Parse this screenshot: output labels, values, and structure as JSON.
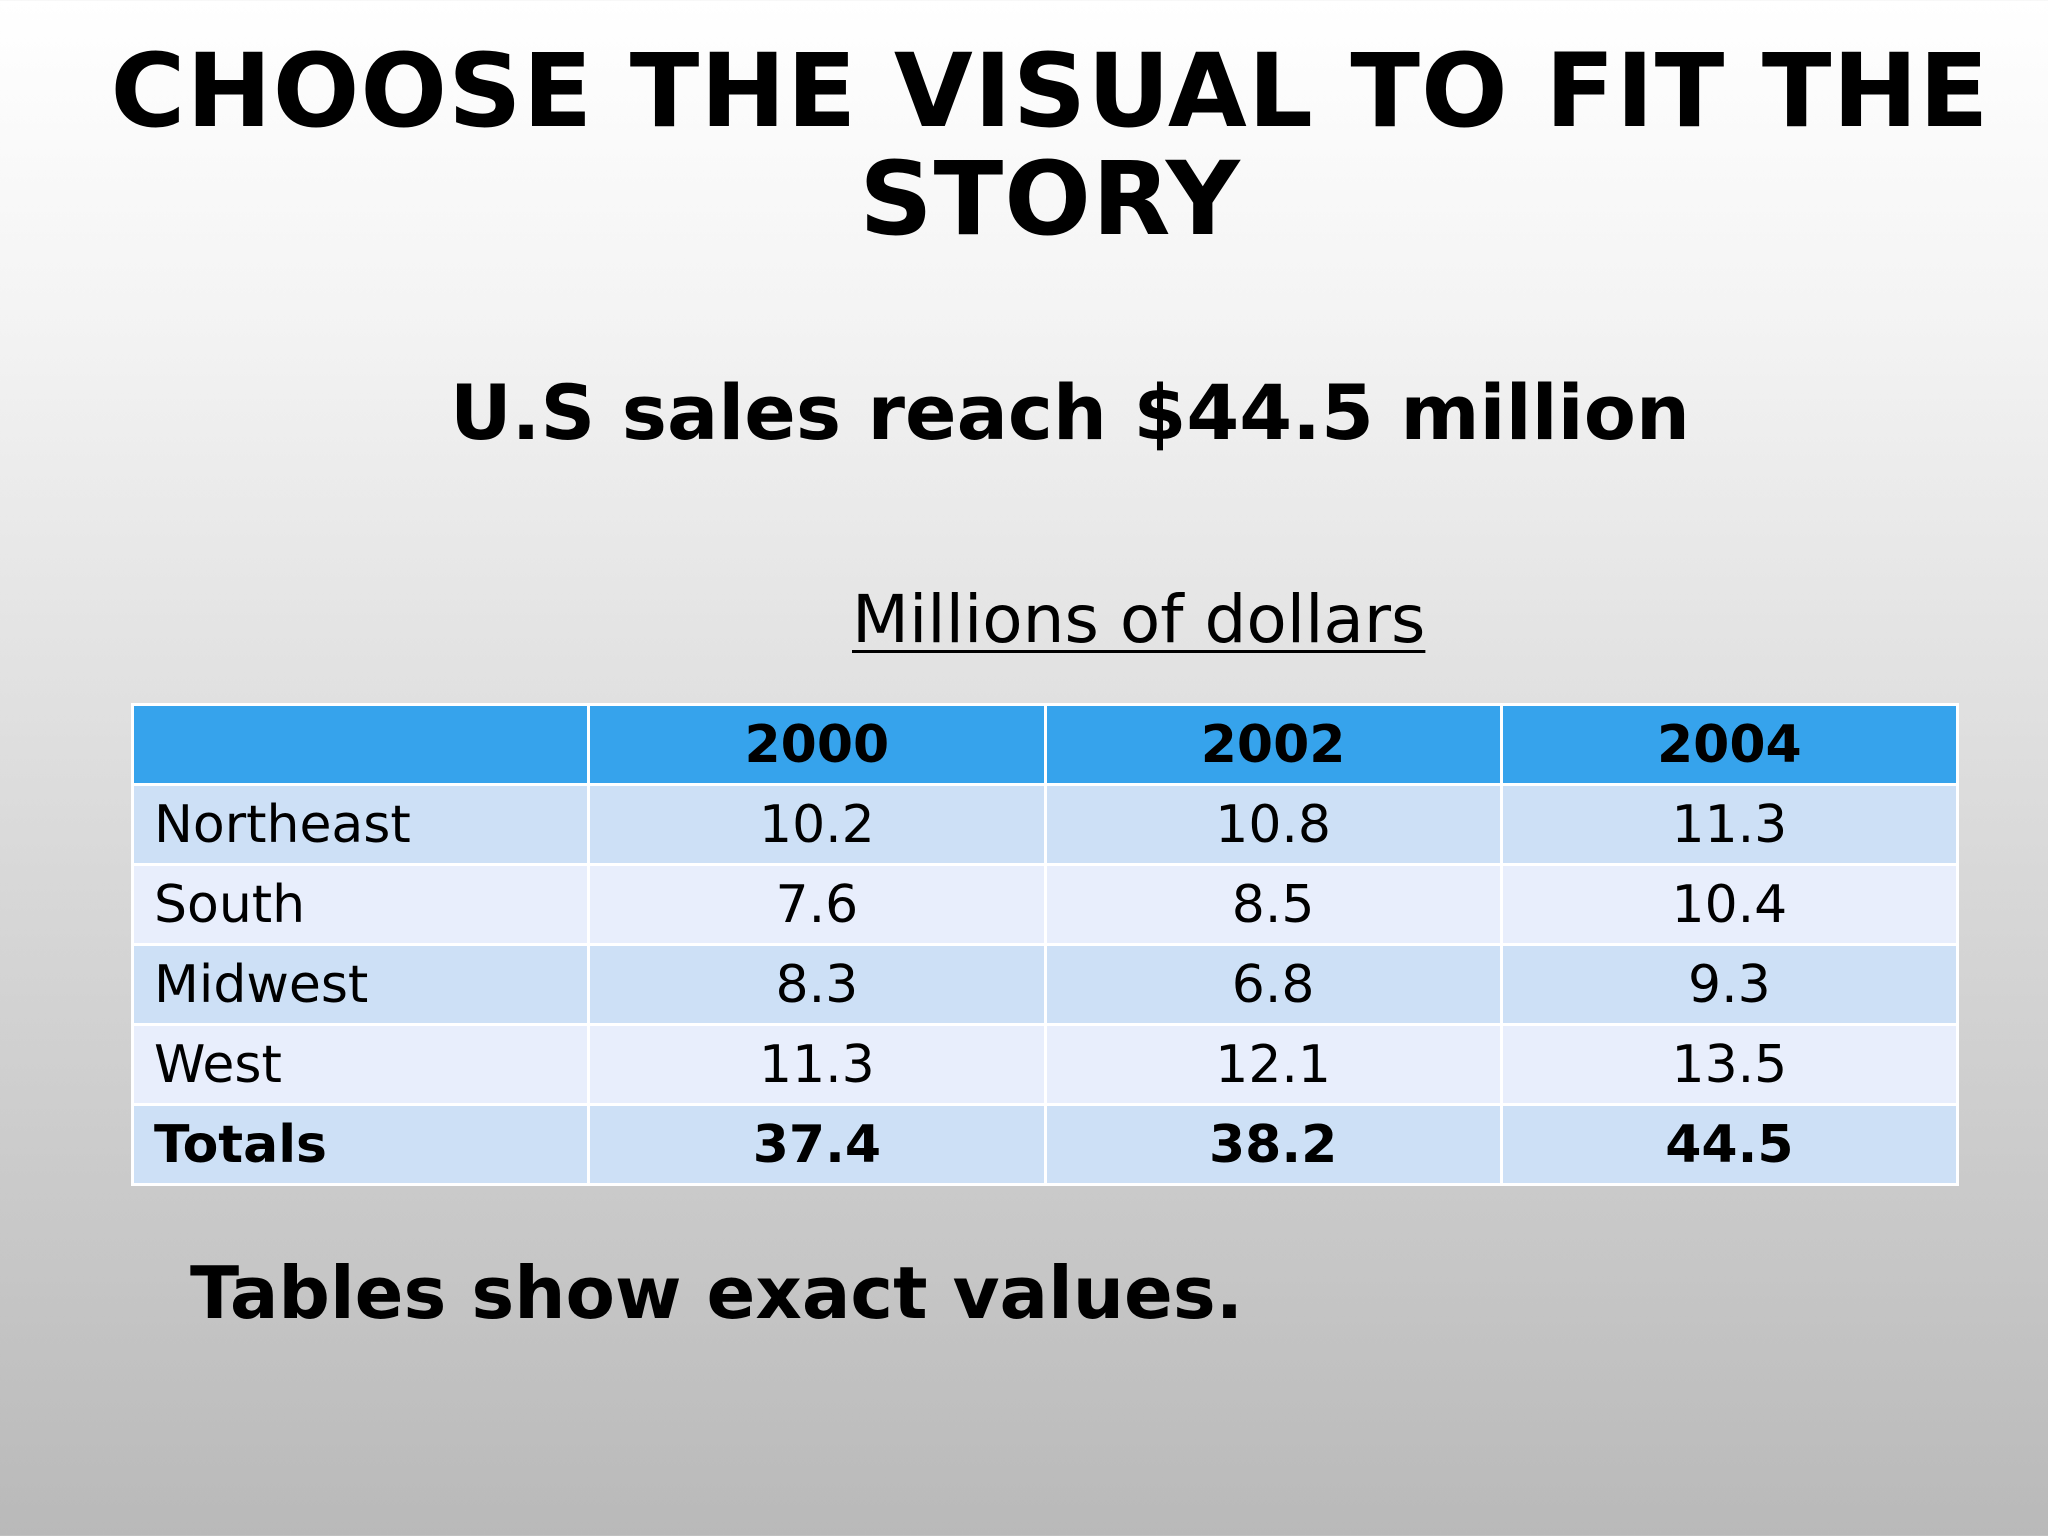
{
  "slide": {
    "title_line1": "CHOOSE THE VISUAL TO FIT THE",
    "title_line2": "STORY",
    "subtitle": "U.S sales reach $44.5 million",
    "caption": "Millions of dollars",
    "note": "Tables show exact values."
  },
  "table": {
    "corner": "",
    "columns": [
      "2000",
      "2002",
      "2004"
    ],
    "rows": [
      {
        "label": "Northeast",
        "values": [
          "10.2",
          "10.8",
          "11.3"
        ]
      },
      {
        "label": "South",
        "values": [
          "7.6",
          "8.5",
          "10.4"
        ]
      },
      {
        "label": "Midwest",
        "values": [
          "8.3",
          "6.8",
          "9.3"
        ]
      },
      {
        "label": "West",
        "values": [
          "11.3",
          "12.1",
          "13.5"
        ]
      },
      {
        "label": "Totals",
        "values": [
          "37.4",
          "38.2",
          "44.5"
        ]
      }
    ]
  },
  "colors": {
    "header_fill": "#36a3ec",
    "row_fill_dark": "#cde0f6",
    "row_fill_light": "#e8eefc"
  }
}
